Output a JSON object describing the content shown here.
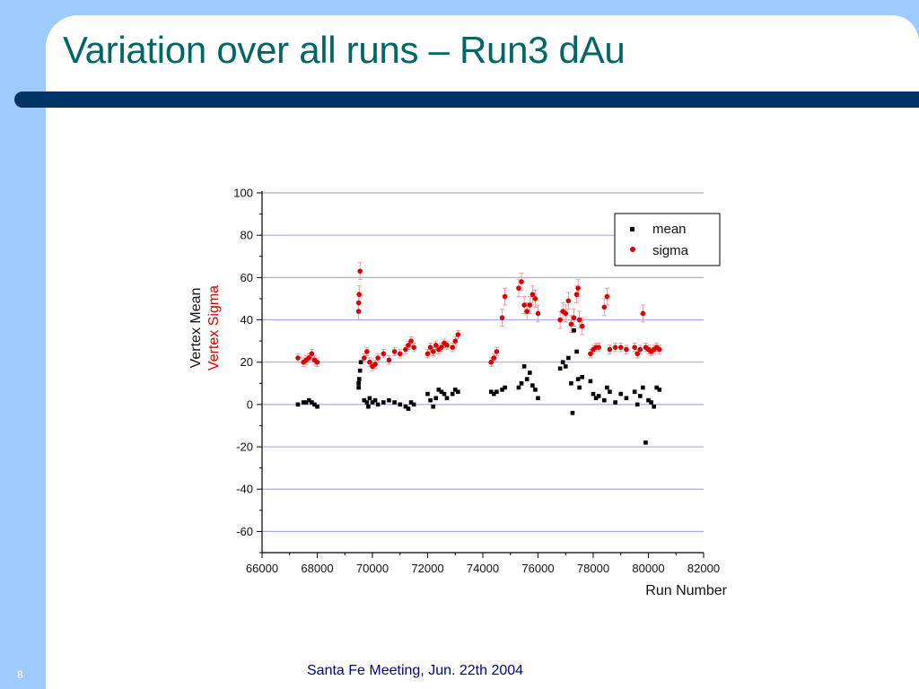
{
  "slide": {
    "title": "Variation over all runs – Run3 dAu",
    "footer": "Santa Fe Meeting, Jun. 22th 2004",
    "page_number": "8"
  },
  "colors": {
    "background": "#9ecbfe",
    "title": "#006666",
    "rule": "#003366",
    "footer": "#00008b",
    "mean_marker": "#000000",
    "sigma_marker": "#dd0000",
    "gridline": "#aaaaee"
  },
  "chart_data": {
    "type": "scatter",
    "title": "",
    "xlabel": "Run Number",
    "ylabel_lines": [
      "Vertex Mean",
      "Vertex Sigma"
    ],
    "xlim": [
      66000,
      82000
    ],
    "ylim": [
      -70,
      100
    ],
    "x_ticks": [
      66000,
      68000,
      70000,
      72000,
      74000,
      76000,
      78000,
      80000,
      82000
    ],
    "y_ticks": [
      -60,
      -40,
      -20,
      0,
      20,
      40,
      60,
      80,
      100
    ],
    "grid": "horizontal",
    "legend_position": "top-right",
    "series": [
      {
        "name": "mean",
        "marker": "square",
        "color": "#000000",
        "points": [
          [
            67300,
            0
          ],
          [
            67500,
            1
          ],
          [
            67600,
            1
          ],
          [
            67700,
            2
          ],
          [
            67800,
            1
          ],
          [
            67900,
            0
          ],
          [
            68000,
            -1
          ],
          [
            69500,
            8
          ],
          [
            69500,
            10
          ],
          [
            69520,
            12
          ],
          [
            69550,
            16
          ],
          [
            69580,
            20
          ],
          [
            69700,
            2
          ],
          [
            69800,
            1
          ],
          [
            69850,
            -1
          ],
          [
            69900,
            3
          ],
          [
            70000,
            1
          ],
          [
            70100,
            2
          ],
          [
            70200,
            0
          ],
          [
            70400,
            1
          ],
          [
            70600,
            2
          ],
          [
            70800,
            1
          ],
          [
            71000,
            0
          ],
          [
            71200,
            -1
          ],
          [
            71300,
            -2
          ],
          [
            71400,
            1
          ],
          [
            71500,
            0
          ],
          [
            72000,
            5
          ],
          [
            72100,
            2
          ],
          [
            72200,
            -1
          ],
          [
            72300,
            3
          ],
          [
            72400,
            7
          ],
          [
            72500,
            6
          ],
          [
            72600,
            5
          ],
          [
            72700,
            3
          ],
          [
            72900,
            5
          ],
          [
            73000,
            7
          ],
          [
            73100,
            6
          ],
          [
            74300,
            6
          ],
          [
            74400,
            5
          ],
          [
            74500,
            6
          ],
          [
            74700,
            7
          ],
          [
            74800,
            8
          ],
          [
            75300,
            8
          ],
          [
            75400,
            10
          ],
          [
            75500,
            18
          ],
          [
            75600,
            12
          ],
          [
            75700,
            15
          ],
          [
            75800,
            9
          ],
          [
            75900,
            7
          ],
          [
            76000,
            3
          ],
          [
            76800,
            17
          ],
          [
            76900,
            20
          ],
          [
            77000,
            18
          ],
          [
            77100,
            22
          ],
          [
            77200,
            10
          ],
          [
            77250,
            -4
          ],
          [
            77300,
            35
          ],
          [
            77400,
            25
          ],
          [
            77450,
            12
          ],
          [
            77500,
            8
          ],
          [
            77600,
            13
          ],
          [
            77900,
            11
          ],
          [
            78000,
            5
          ],
          [
            78100,
            3
          ],
          [
            78200,
            4
          ],
          [
            78400,
            2
          ],
          [
            78500,
            8
          ],
          [
            78600,
            6
          ],
          [
            78800,
            1
          ],
          [
            79000,
            5
          ],
          [
            79200,
            3
          ],
          [
            79500,
            6
          ],
          [
            79600,
            0
          ],
          [
            79700,
            4
          ],
          [
            79800,
            8
          ],
          [
            79900,
            -18
          ],
          [
            80000,
            2
          ],
          [
            80100,
            1
          ],
          [
            80200,
            -1
          ],
          [
            80300,
            8
          ],
          [
            80400,
            7
          ]
        ]
      },
      {
        "name": "sigma",
        "marker": "circle",
        "color": "#dd0000",
        "points": [
          [
            67300,
            22
          ],
          [
            67500,
            20
          ],
          [
            67600,
            21
          ],
          [
            67700,
            22
          ],
          [
            67800,
            24
          ],
          [
            67900,
            21
          ],
          [
            68000,
            20
          ],
          [
            69500,
            44
          ],
          [
            69500,
            48
          ],
          [
            69520,
            52
          ],
          [
            69550,
            63
          ],
          [
            69700,
            22
          ],
          [
            69800,
            25
          ],
          [
            69900,
            20
          ],
          [
            70000,
            18
          ],
          [
            70100,
            19
          ],
          [
            70200,
            22
          ],
          [
            70400,
            24
          ],
          [
            70600,
            21
          ],
          [
            70800,
            25
          ],
          [
            71000,
            24
          ],
          [
            71200,
            26
          ],
          [
            71300,
            28
          ],
          [
            71400,
            30
          ],
          [
            71500,
            27
          ],
          [
            72000,
            24
          ],
          [
            72100,
            27
          ],
          [
            72200,
            25
          ],
          [
            72300,
            28
          ],
          [
            72400,
            26
          ],
          [
            72500,
            27
          ],
          [
            72600,
            29
          ],
          [
            72700,
            28
          ],
          [
            72900,
            27
          ],
          [
            73000,
            30
          ],
          [
            73100,
            33
          ],
          [
            74300,
            20
          ],
          [
            74400,
            22
          ],
          [
            74500,
            25
          ],
          [
            74700,
            41
          ],
          [
            74800,
            51
          ],
          [
            75300,
            55
          ],
          [
            75400,
            58
          ],
          [
            75500,
            47
          ],
          [
            75600,
            44
          ],
          [
            75700,
            47
          ],
          [
            75800,
            52
          ],
          [
            75900,
            50
          ],
          [
            76000,
            43
          ],
          [
            76800,
            40
          ],
          [
            76900,
            44
          ],
          [
            77000,
            43
          ],
          [
            77100,
            49
          ],
          [
            77200,
            38
          ],
          [
            77300,
            41
          ],
          [
            77400,
            52
          ],
          [
            77450,
            55
          ],
          [
            77500,
            40
          ],
          [
            77600,
            37
          ],
          [
            77900,
            24
          ],
          [
            78000,
            26
          ],
          [
            78100,
            27
          ],
          [
            78200,
            27
          ],
          [
            78400,
            46
          ],
          [
            78500,
            51
          ],
          [
            78600,
            26
          ],
          [
            78800,
            27
          ],
          [
            79000,
            27
          ],
          [
            79200,
            26
          ],
          [
            79500,
            27
          ],
          [
            79600,
            24
          ],
          [
            79700,
            26
          ],
          [
            79800,
            43
          ],
          [
            79900,
            27
          ],
          [
            80000,
            26
          ],
          [
            80100,
            25
          ],
          [
            80200,
            26
          ],
          [
            80300,
            27
          ],
          [
            80400,
            26
          ]
        ]
      }
    ]
  }
}
